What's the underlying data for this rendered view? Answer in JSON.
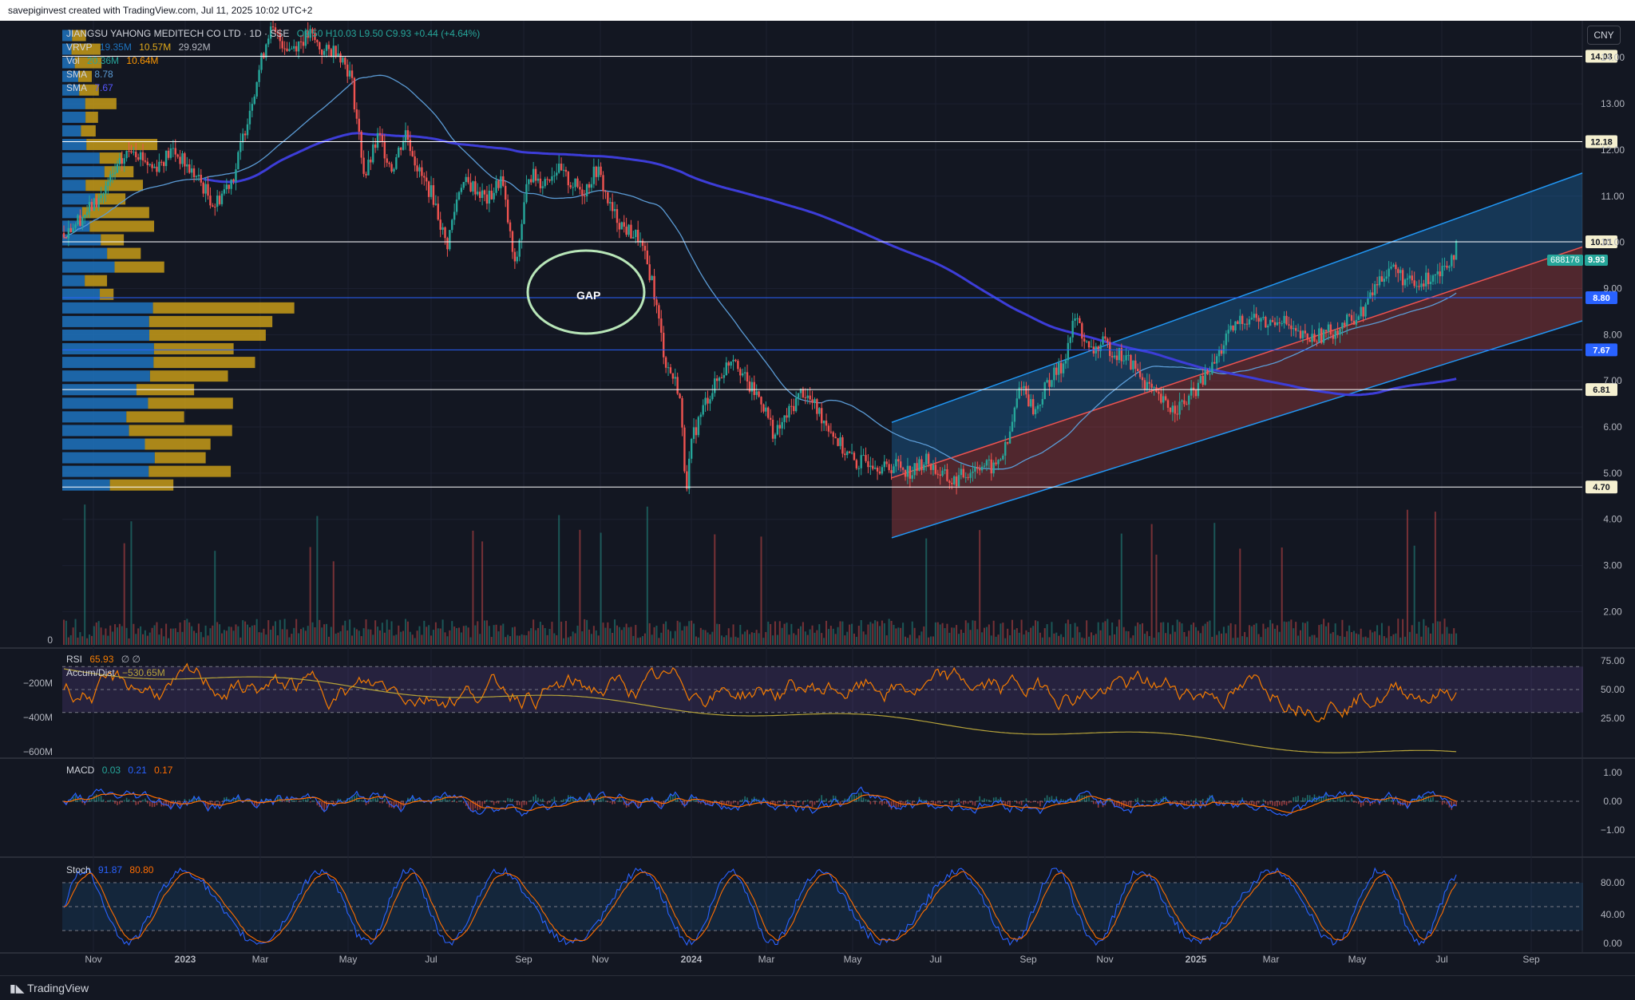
{
  "header": {
    "attribution": "savepiginvest created with TradingView.com, Jul 11, 2025 10:02 UTC+2"
  },
  "footer": {
    "brand": "TradingView"
  },
  "currency_button": "CNY",
  "symbol_legend": {
    "name": "JIANGSU YAHONG MEDITECH CO LTD · 1D · SSE",
    "ohlc": "O9.50 H10.03 L9.50 C9.93 +0.44 (+4.64%)",
    "vrvp_label": "VRVP",
    "vrvp_values": [
      "19.35M",
      "10.57M",
      "29.92M"
    ],
    "vol_label": "Vol",
    "vol_values": [
      "20.36M",
      "10.64M"
    ],
    "sma1_label": "SMA",
    "sma1_value": "8.78",
    "sma2_label": "SMA",
    "sma2_value": "7.67"
  },
  "annotation": {
    "text": "GAP"
  },
  "price_tags": {
    "symbol": "688176",
    "last": "9.93"
  },
  "rsi_legend": {
    "label": "RSI",
    "value": "65.93",
    "extra": "∅ ∅"
  },
  "ad_legend": {
    "label": "Accum/Dist",
    "value": "−530.65M"
  },
  "macd_legend": {
    "label": "MACD",
    "values": [
      "0.03",
      "0.21",
      "0.17"
    ]
  },
  "stoch_legend": {
    "label": "Stoch",
    "values": [
      "91.87",
      "80.80"
    ]
  },
  "colors": {
    "bg": "#131722",
    "up": "#26a69a",
    "down": "#ef5350",
    "sma_fast": "#5b9bd5",
    "sma_slow": "#3d3dd8",
    "level_white": "#ffffff",
    "level_blue": "#2962ff",
    "vrvp_up": "#1e73be",
    "vrvp_down": "#c79b18",
    "rsi": "#f57c00",
    "ad": "#b5a23a",
    "macd": "#2962ff",
    "signal": "#ff6d00",
    "stoch_k": "#2962ff",
    "stoch_d": "#ff6d00"
  },
  "chart_data": {
    "type": "line",
    "title": "JIANGSU YAHONG MEDITECH CO LTD",
    "x_tick_labels": [
      "Nov",
      "2023",
      "Mar",
      "May",
      "Jul",
      "Sep",
      "Nov",
      "2024",
      "Mar",
      "May",
      "Jul",
      "Sep",
      "Nov",
      "2025",
      "Mar",
      "May",
      "Jul",
      "Sep"
    ],
    "price_axis_ticks": [
      "14.00",
      "13.00",
      "12.00",
      "11.00",
      "10.00",
      "9.00",
      "8.00",
      "7.00",
      "6.00",
      "5.00",
      "4.00",
      "3.00",
      "2.00"
    ],
    "price_axis_range": [
      1.6,
      15.0
    ],
    "horizontal_levels": [
      {
        "value": 14.03,
        "label": "14.03",
        "color": "white"
      },
      {
        "value": 12.18,
        "label": "12.18",
        "color": "white"
      },
      {
        "value": 10.01,
        "label": "10.01",
        "color": "white"
      },
      {
        "value": 8.8,
        "label": "8.80",
        "color": "blue"
      },
      {
        "value": 7.67,
        "label": "7.67",
        "color": "blue"
      },
      {
        "value": 6.81,
        "label": "6.81",
        "color": "white"
      },
      {
        "value": 4.7,
        "label": "4.70",
        "color": "white"
      }
    ],
    "price_series": {
      "name": "Close (approx.)",
      "points": [
        [
          0,
          10.2
        ],
        [
          5,
          10.9
        ],
        [
          10,
          12.1
        ],
        [
          13,
          11.6
        ],
        [
          16,
          12.0
        ],
        [
          20,
          11.3
        ],
        [
          22,
          10.8
        ],
        [
          25,
          11.5
        ],
        [
          27,
          12.8
        ],
        [
          30,
          14.6
        ],
        [
          33,
          14.2
        ],
        [
          36,
          14.5
        ],
        [
          38,
          14.1
        ],
        [
          40,
          14.2
        ],
        [
          42,
          13.6
        ],
        [
          44,
          11.4
        ],
        [
          46,
          12.3
        ],
        [
          48,
          11.6
        ],
        [
          50,
          12.4
        ],
        [
          52,
          11.5
        ],
        [
          54,
          11.0
        ],
        [
          56,
          9.9
        ],
        [
          58,
          11.3
        ],
        [
          60,
          11.2
        ],
        [
          62,
          10.9
        ],
        [
          64,
          11.4
        ],
        [
          66,
          9.4
        ],
        [
          68,
          11.5
        ],
        [
          70,
          11.3
        ],
        [
          72,
          11.6
        ],
        [
          74,
          11.3
        ],
        [
          76,
          11.1
        ],
        [
          78,
          11.6
        ],
        [
          80,
          10.7
        ],
        [
          82,
          10.3
        ],
        [
          84,
          10.1
        ],
        [
          86,
          9.2
        ],
        [
          88,
          7.4
        ],
        [
          90,
          6.8
        ],
        [
          91,
          4.7
        ],
        [
          92,
          5.8
        ],
        [
          94,
          6.6
        ],
        [
          96,
          7.1
        ],
        [
          98,
          7.6
        ],
        [
          100,
          6.9
        ],
        [
          102,
          6.6
        ],
        [
          104,
          5.8
        ],
        [
          106,
          6.3
        ],
        [
          108,
          6.8
        ],
        [
          110,
          6.4
        ],
        [
          112,
          6.0
        ],
        [
          114,
          5.5
        ],
        [
          116,
          5.2
        ],
        [
          118,
          5.3
        ],
        [
          120,
          5.1
        ],
        [
          122,
          5.2
        ],
        [
          124,
          5.0
        ],
        [
          126,
          5.3
        ],
        [
          128,
          5.0
        ],
        [
          130,
          4.8
        ],
        [
          132,
          5.0
        ],
        [
          134,
          5.2
        ],
        [
          136,
          5.1
        ],
        [
          138,
          5.6
        ],
        [
          140,
          7.0
        ],
        [
          142,
          6.3
        ],
        [
          144,
          7.0
        ],
        [
          146,
          7.3
        ],
        [
          148,
          8.4
        ],
        [
          150,
          7.6
        ],
        [
          152,
          7.8
        ],
        [
          154,
          7.6
        ],
        [
          156,
          7.4
        ],
        [
          158,
          7.0
        ],
        [
          160,
          6.6
        ],
        [
          162,
          6.4
        ],
        [
          164,
          6.5
        ],
        [
          166,
          6.9
        ],
        [
          168,
          7.3
        ],
        [
          170,
          7.9
        ],
        [
          172,
          8.3
        ],
        [
          174,
          8.4
        ],
        [
          176,
          8.2
        ],
        [
          178,
          8.4
        ],
        [
          180,
          8.0
        ],
        [
          182,
          7.9
        ],
        [
          184,
          8.0
        ],
        [
          186,
          8.1
        ],
        [
          188,
          8.3
        ],
        [
          190,
          8.5
        ],
        [
          192,
          9.1
        ],
        [
          194,
          9.5
        ],
        [
          196,
          9.2
        ],
        [
          198,
          9.0
        ],
        [
          200,
          9.3
        ],
        [
          202,
          9.5
        ],
        [
          204,
          9.93
        ]
      ]
    },
    "sma_fast_name": "SMA 8.78",
    "sma_slow_name": "SMA 7.67",
    "channel": {
      "start_x": 103,
      "end_x": 230,
      "upper": [
        6.1,
        11.5
      ],
      "mid": [
        4.9,
        9.9
      ],
      "lower": [
        3.6,
        8.3
      ]
    },
    "volume_axis_label": "0",
    "rsi": {
      "axis_ticks": [
        "75.00",
        "50.00",
        "25.00"
      ],
      "overbought": 70,
      "oversold": 30,
      "last": 65.93
    },
    "accum_dist": {
      "axis_ticks": [
        "−200M",
        "−400M",
        "−600M"
      ],
      "last": -530.65
    },
    "macd": {
      "axis_ticks": [
        "1.00",
        "0.00",
        "−1.00"
      ],
      "macd": 0.21,
      "signal": 0.17,
      "hist": 0.03
    },
    "stoch": {
      "axis_ticks": [
        "80.00",
        "40.00",
        "0.00"
      ],
      "k": 91.87,
      "d": 80.8
    }
  }
}
